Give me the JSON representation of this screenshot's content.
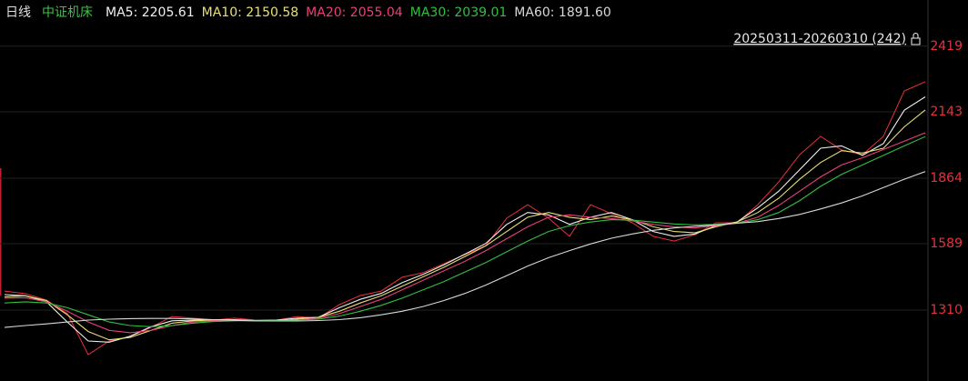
{
  "chart_data": {
    "type": "line",
    "period": "日线",
    "title": "中证机床",
    "range_label": "20250311-20260310 (242)",
    "ylim": [
      1012,
      2613
    ],
    "yticks": [
      1310,
      1589,
      1864,
      2143,
      2419
    ],
    "grid": true,
    "xlim": [
      0,
      44
    ],
    "close": {
      "color": "#e8313c",
      "values": [
        1390,
        1379,
        1352,
        1295,
        1123,
        1180,
        1199,
        1237,
        1283,
        1276,
        1268,
        1276,
        1268,
        1268,
        1283,
        1276,
        1333,
        1371,
        1390,
        1448,
        1467,
        1505,
        1543,
        1581,
        1696,
        1753,
        1696,
        1620,
        1753,
        1715,
        1677,
        1620,
        1600,
        1627,
        1677,
        1677,
        1753,
        1849,
        1963,
        2040,
        1983,
        1963,
        2040,
        2231,
        2269
      ]
    },
    "series": [
      {
        "name": "MA5: 2205.61",
        "color": "#f0f0f0",
        "values": [
          1375,
          1370,
          1345,
          1260,
          1180,
          1175,
          1200,
          1240,
          1265,
          1268,
          1270,
          1270,
          1266,
          1268,
          1276,
          1280,
          1320,
          1355,
          1380,
          1425,
          1460,
          1500,
          1545,
          1590,
          1670,
          1720,
          1710,
          1670,
          1700,
          1720,
          1690,
          1640,
          1620,
          1630,
          1665,
          1680,
          1740,
          1810,
          1900,
          1990,
          2000,
          1960,
          2010,
          2150,
          2206
        ]
      },
      {
        "name": "MA10: 2150.58",
        "color": "#e8e070",
        "values": [
          1365,
          1370,
          1350,
          1290,
          1220,
          1185,
          1195,
          1225,
          1255,
          1265,
          1268,
          1268,
          1264,
          1265,
          1272,
          1280,
          1305,
          1340,
          1370,
          1410,
          1450,
          1490,
          1535,
          1580,
          1640,
          1700,
          1720,
          1700,
          1690,
          1705,
          1690,
          1660,
          1640,
          1635,
          1660,
          1680,
          1720,
          1780,
          1860,
          1930,
          1980,
          1970,
          1990,
          2080,
          2151
        ]
      },
      {
        "name": "MA20: 2055.04",
        "color": "#e8407a",
        "values": [
          1360,
          1362,
          1345,
          1305,
          1260,
          1225,
          1215,
          1225,
          1245,
          1260,
          1265,
          1266,
          1265,
          1264,
          1268,
          1276,
          1295,
          1325,
          1355,
          1395,
          1435,
          1475,
          1515,
          1560,
          1610,
          1660,
          1700,
          1710,
          1700,
          1695,
          1685,
          1670,
          1660,
          1655,
          1665,
          1675,
          1700,
          1750,
          1810,
          1870,
          1920,
          1950,
          1985,
          2020,
          2055
        ]
      },
      {
        "name": "MA30: 2039.01",
        "color": "#30c040",
        "values": [
          1340,
          1345,
          1340,
          1320,
          1290,
          1260,
          1245,
          1240,
          1245,
          1255,
          1262,
          1265,
          1266,
          1266,
          1268,
          1272,
          1285,
          1305,
          1330,
          1360,
          1395,
          1430,
          1470,
          1510,
          1555,
          1600,
          1640,
          1665,
          1680,
          1690,
          1688,
          1680,
          1672,
          1668,
          1670,
          1675,
          1690,
          1720,
          1770,
          1830,
          1880,
          1920,
          1960,
          2000,
          2039
        ]
      },
      {
        "name": "MA60: 1891.60",
        "color": "#d8d8d8",
        "values": [
          1237,
          1245,
          1252,
          1260,
          1268,
          1272,
          1274,
          1275,
          1275,
          1273,
          1270,
          1267,
          1265,
          1264,
          1264,
          1266,
          1270,
          1278,
          1290,
          1305,
          1325,
          1350,
          1380,
          1415,
          1455,
          1495,
          1530,
          1560,
          1588,
          1612,
          1630,
          1645,
          1655,
          1662,
          1668,
          1675,
          1682,
          1695,
          1712,
          1735,
          1760,
          1790,
          1825,
          1860,
          1892
        ]
      }
    ]
  }
}
